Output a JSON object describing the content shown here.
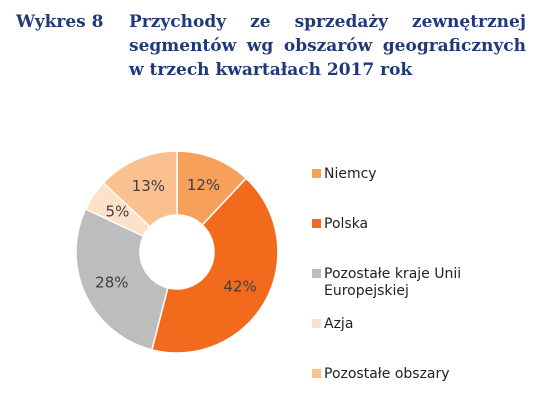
{
  "heading": {
    "label": "Wykres 8",
    "title_line1": "Przychody ze sprzedaży zewnętrznej",
    "title_line2": "segmentów wg obszarów geograficznych",
    "title_line3": "w trzech kwartałach 2017 rok"
  },
  "chart_data": {
    "type": "pie",
    "variant": "donut",
    "title": "Przychody ze sprzedaży zewnętrznej segmentów wg obszarów geograficznych w trzech kwartałach 2017 rok",
    "categories": [
      "Niemcy",
      "Polska",
      "Pozostałe kraje Unii Europejskiej",
      "Azja",
      "Pozostałe obszary"
    ],
    "values": [
      12,
      42,
      28,
      5,
      13
    ],
    "value_labels": [
      "12%",
      "42%",
      "28%",
      "5%",
      "13%"
    ],
    "colors": [
      "#f7a05c",
      "#f26a1b",
      "#bdbdbd",
      "#fde1c8",
      "#fac08f"
    ],
    "legend": "right"
  },
  "legend": [
    {
      "label": "Niemcy",
      "color": "#f7a05c"
    },
    {
      "label": "Polska",
      "color": "#f26a1b"
    },
    {
      "label": "Pozostałe kraje Unii Europejskiej",
      "color": "#bdbdbd"
    },
    {
      "label": "Azja",
      "color": "#fde1c8"
    },
    {
      "label": "Pozostałe obszary",
      "color": "#fac08f"
    }
  ]
}
